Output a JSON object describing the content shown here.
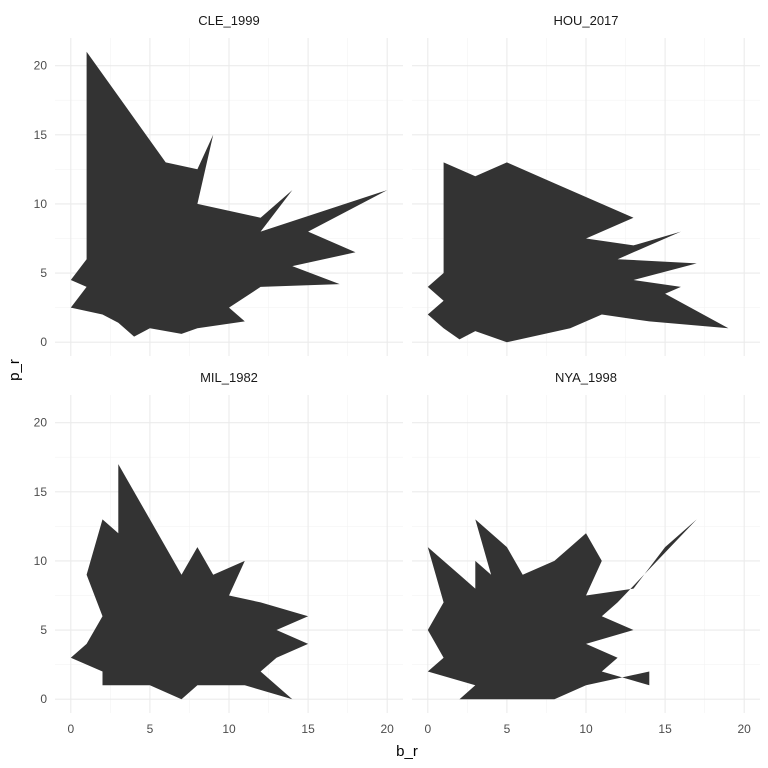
{
  "chart_data": {
    "type": "polygon",
    "facet_layout": "2x2",
    "xlabel": "b_r",
    "ylabel": "p_r",
    "xlim": [
      -1,
      21
    ],
    "ylim": [
      -1,
      22
    ],
    "x_ticks": [
      "0",
      "5",
      "10",
      "15",
      "20"
    ],
    "y_ticks": [
      "0",
      "5",
      "10",
      "15",
      "20"
    ],
    "fill_color": "#333333",
    "grid": true,
    "panels": [
      {
        "title": "CLE_1999",
        "polygon": [
          [
            1,
            21
          ],
          [
            6,
            13
          ],
          [
            8,
            12.5
          ],
          [
            9,
            15
          ],
          [
            8,
            10
          ],
          [
            12,
            9
          ],
          [
            14,
            11
          ],
          [
            12,
            8
          ],
          [
            20,
            11
          ],
          [
            15,
            8
          ],
          [
            18,
            6.5
          ],
          [
            14,
            5.5
          ],
          [
            17,
            4.2
          ],
          [
            12,
            4
          ],
          [
            10,
            2.5
          ],
          [
            11,
            1.5
          ],
          [
            8,
            1
          ],
          [
            7,
            0.6
          ],
          [
            5,
            1
          ],
          [
            4,
            0.4
          ],
          [
            3,
            1.4
          ],
          [
            2,
            2
          ],
          [
            0,
            2.5
          ],
          [
            1,
            4
          ],
          [
            0,
            4.5
          ],
          [
            1,
            6
          ],
          [
            1,
            21
          ]
        ]
      },
      {
        "title": "HOU_2017",
        "polygon": [
          [
            1,
            13
          ],
          [
            3,
            12
          ],
          [
            5,
            13
          ],
          [
            8,
            11.5
          ],
          [
            13,
            9
          ],
          [
            10,
            7.5
          ],
          [
            13,
            7
          ],
          [
            16,
            8
          ],
          [
            12,
            6
          ],
          [
            17,
            5.7
          ],
          [
            13,
            4.5
          ],
          [
            16,
            4
          ],
          [
            15,
            3.5
          ],
          [
            19,
            1
          ],
          [
            14,
            1.5
          ],
          [
            11,
            2
          ],
          [
            9,
            1
          ],
          [
            5,
            0
          ],
          [
            3,
            0.8
          ],
          [
            2,
            0.2
          ],
          [
            1,
            1
          ],
          [
            0,
            2
          ],
          [
            1,
            3
          ],
          [
            0,
            4
          ],
          [
            1,
            5
          ],
          [
            1,
            13
          ]
        ]
      },
      {
        "title": "MIL_1982",
        "polygon": [
          [
            1,
            9
          ],
          [
            2,
            13
          ],
          [
            3,
            12
          ],
          [
            3,
            17
          ],
          [
            5,
            13
          ],
          [
            7,
            9
          ],
          [
            8,
            11
          ],
          [
            9,
            9
          ],
          [
            11,
            10
          ],
          [
            10,
            7.5
          ],
          [
            12,
            7
          ],
          [
            15,
            6
          ],
          [
            13,
            5
          ],
          [
            15,
            4
          ],
          [
            13,
            3
          ],
          [
            12,
            2
          ],
          [
            14,
            0
          ],
          [
            11,
            1
          ],
          [
            8,
            1
          ],
          [
            7,
            0
          ],
          [
            5,
            1
          ],
          [
            2,
            1
          ],
          [
            2,
            2
          ],
          [
            0,
            3
          ],
          [
            1,
            4
          ],
          [
            2,
            6
          ],
          [
            1,
            9
          ]
        ]
      },
      {
        "title": "NYA_1998",
        "polygon": [
          [
            0,
            11
          ],
          [
            2,
            9
          ],
          [
            3,
            8
          ],
          [
            3,
            10
          ],
          [
            4,
            9
          ],
          [
            3,
            13
          ],
          [
            5,
            11
          ],
          [
            6,
            9
          ],
          [
            8,
            10
          ],
          [
            9,
            11
          ],
          [
            10,
            12
          ],
          [
            11,
            10
          ],
          [
            10,
            7.5
          ],
          [
            13,
            8
          ],
          [
            15,
            11
          ],
          [
            17,
            13
          ],
          [
            12,
            7
          ],
          [
            11,
            6
          ],
          [
            13,
            5
          ],
          [
            10,
            4
          ],
          [
            12,
            3
          ],
          [
            11,
            2
          ],
          [
            14,
            1
          ],
          [
            14,
            2
          ],
          [
            10,
            1
          ],
          [
            8,
            0
          ],
          [
            5,
            0
          ],
          [
            2,
            0
          ],
          [
            3,
            1
          ],
          [
            0,
            2
          ],
          [
            1,
            3
          ],
          [
            0,
            5
          ],
          [
            1,
            7
          ],
          [
            0,
            11
          ]
        ]
      }
    ]
  }
}
